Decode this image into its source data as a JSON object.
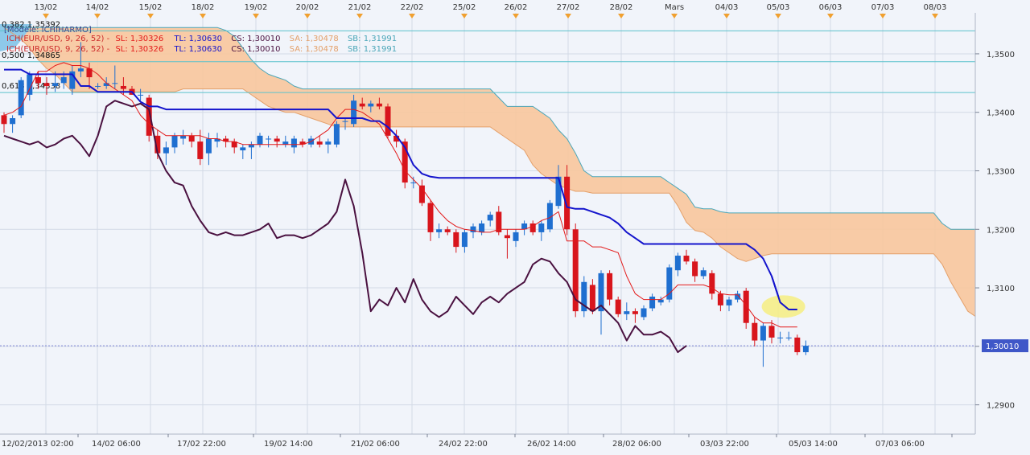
{
  "header": {
    "model_label": "[Modèle: ICHIHARMO]",
    "legend_rows": [
      {
        "indicator": "ICH(EUR/USD, 9, 26, 52)  -",
        "sl": "SL: 1,30326",
        "tl": "TL: 1,30630",
        "cs": "CS: 1,30010",
        "sa": "SA: 1,30478",
        "sb": "SB: 1,31991"
      },
      {
        "indicator": "ICH(EUR/USD, 9, 26, 52)  -",
        "sl": "SL: 1,30326",
        "tl": "TL: 1,30630",
        "cs": "CS: 1,30010",
        "sa": "SA: 1,30478",
        "sb": "SB: 1,31991"
      }
    ]
  },
  "colors": {
    "background": "#f1f4fa",
    "grid": "#d3dae6",
    "bull_candle": "#1f6fd0",
    "bear_candle": "#d8151c",
    "kijun": "#1414cc",
    "tenkan": "#e31a1a",
    "chikou": "#4a1140",
    "cloud_fill": "#f8c79c",
    "senkou_a": "#e4a06a",
    "senkou_b": "#4aa6b8",
    "fib_line": "#5bc2cc",
    "last_price_badge": "#3f57c8",
    "highlight": "#f6ed80",
    "event_marker": "#f0a030"
  },
  "chart_data": {
    "type": "candlestick",
    "instrument": "EUR/USD",
    "y_axis": {
      "range": [
        1.285,
        1.357
      ],
      "ticks": [
        1.29,
        1.3,
        1.31,
        1.32,
        1.33,
        1.34,
        1.35
      ],
      "tick_labels": [
        "1,2900",
        "1,3000",
        "1,3100",
        "1,3200",
        "1,3300",
        "1,3400",
        "1,3500"
      ]
    },
    "top_dates": [
      "13/02",
      "14/02",
      "15/02",
      "18/02",
      "19/02",
      "20/02",
      "21/02",
      "22/02",
      "25/02",
      "26/02",
      "27/02",
      "28/02",
      "Mars",
      "04/03",
      "05/03",
      "06/03",
      "07/03",
      "08/03"
    ],
    "bottom_time_labels": [
      "12/02/2013 02:00",
      "14/02 06:00",
      "17/02 22:00",
      "19/02 14:00",
      "21/02 06:00",
      "24/02 22:00",
      "26/02 14:00",
      "28/02 06:00",
      "03/03 22:00",
      "05/03 14:00",
      "07/03 06:00"
    ],
    "last_price": {
      "label": "1,30010",
      "value": 1.3001
    },
    "fib_levels": [
      {
        "label": "0,382 1,35392",
        "value": 1.35392
      },
      {
        "label": "0,500 1,34865",
        "value": 1.34865
      },
      {
        "label": "0,618 1,34338",
        "value": 1.34338
      }
    ],
    "candles": [
      [
        1.3395,
        1.34,
        1.3365,
        1.338
      ],
      [
        1.338,
        1.3395,
        1.3365,
        1.339
      ],
      [
        1.3395,
        1.346,
        1.339,
        1.3455
      ],
      [
        1.343,
        1.347,
        1.342,
        1.3465
      ],
      [
        1.346,
        1.347,
        1.344,
        1.345
      ],
      [
        1.345,
        1.346,
        1.343,
        1.3445
      ],
      [
        1.3445,
        1.347,
        1.3435,
        1.345
      ],
      [
        1.345,
        1.347,
        1.344,
        1.346
      ],
      [
        1.344,
        1.348,
        1.343,
        1.347
      ],
      [
        1.347,
        1.352,
        1.346,
        1.3475
      ],
      [
        1.3475,
        1.3485,
        1.344,
        1.346
      ],
      [
        1.3445,
        1.345,
        1.344,
        1.3445
      ],
      [
        1.3445,
        1.346,
        1.344,
        1.345
      ],
      [
        1.345,
        1.348,
        1.344,
        1.345
      ],
      [
        1.3445,
        1.346,
        1.343,
        1.344
      ],
      [
        1.344,
        1.3445,
        1.343,
        1.343
      ],
      [
        1.343,
        1.344,
        1.342,
        1.343
      ],
      [
        1.3425,
        1.343,
        1.335,
        1.336
      ],
      [
        1.336,
        1.337,
        1.332,
        1.333
      ],
      [
        1.333,
        1.335,
        1.331,
        1.334
      ],
      [
        1.334,
        1.3365,
        1.333,
        1.336
      ],
      [
        1.3355,
        1.337,
        1.3345,
        1.336
      ],
      [
        1.336,
        1.3365,
        1.334,
        1.335
      ],
      [
        1.335,
        1.337,
        1.331,
        1.332
      ],
      [
        1.333,
        1.3365,
        1.331,
        1.3355
      ],
      [
        1.335,
        1.3365,
        1.334,
        1.3355
      ],
      [
        1.3355,
        1.336,
        1.334,
        1.335
      ],
      [
        1.335,
        1.3355,
        1.333,
        1.334
      ],
      [
        1.3335,
        1.3345,
        1.332,
        1.334
      ],
      [
        1.334,
        1.335,
        1.332,
        1.3345
      ],
      [
        1.3345,
        1.3365,
        1.334,
        1.336
      ],
      [
        1.3355,
        1.336,
        1.334,
        1.3355
      ],
      [
        1.3355,
        1.336,
        1.334,
        1.335
      ],
      [
        1.3345,
        1.336,
        1.334,
        1.335
      ],
      [
        1.334,
        1.336,
        1.333,
        1.3355
      ],
      [
        1.335,
        1.3355,
        1.334,
        1.3345
      ],
      [
        1.3345,
        1.336,
        1.334,
        1.3355
      ],
      [
        1.335,
        1.336,
        1.334,
        1.3345
      ],
      [
        1.3345,
        1.3355,
        1.333,
        1.335
      ],
      [
        1.3345,
        1.3385,
        1.334,
        1.338
      ],
      [
        1.3385,
        1.339,
        1.337,
        1.3385
      ],
      [
        1.338,
        1.343,
        1.3375,
        1.342
      ],
      [
        1.3415,
        1.3425,
        1.3405,
        1.341
      ],
      [
        1.341,
        1.342,
        1.34,
        1.3415
      ],
      [
        1.3415,
        1.3425,
        1.3405,
        1.341
      ],
      [
        1.341,
        1.3415,
        1.3355,
        1.336
      ],
      [
        1.336,
        1.337,
        1.334,
        1.335
      ],
      [
        1.335,
        1.3355,
        1.327,
        1.328
      ],
      [
        1.328,
        1.329,
        1.327,
        1.328
      ],
      [
        1.3275,
        1.3285,
        1.324,
        1.3245
      ],
      [
        1.3245,
        1.325,
        1.318,
        1.3195
      ],
      [
        1.3195,
        1.321,
        1.3185,
        1.32
      ],
      [
        1.32,
        1.3205,
        1.319,
        1.3195
      ],
      [
        1.3195,
        1.32,
        1.316,
        1.317
      ],
      [
        1.317,
        1.32,
        1.316,
        1.3195
      ],
      [
        1.3195,
        1.321,
        1.3185,
        1.3205
      ],
      [
        1.3195,
        1.3215,
        1.319,
        1.321
      ],
      [
        1.3215,
        1.323,
        1.3205,
        1.3225
      ],
      [
        1.323,
        1.324,
        1.319,
        1.3195
      ],
      [
        1.319,
        1.32,
        1.315,
        1.3185
      ],
      [
        1.318,
        1.32,
        1.317,
        1.3195
      ],
      [
        1.32,
        1.3215,
        1.319,
        1.321
      ],
      [
        1.321,
        1.3215,
        1.319,
        1.3195
      ],
      [
        1.3195,
        1.3215,
        1.318,
        1.321
      ],
      [
        1.32,
        1.325,
        1.3195,
        1.3245
      ],
      [
        1.324,
        1.331,
        1.3235,
        1.329
      ],
      [
        1.329,
        1.331,
        1.319,
        1.32
      ],
      [
        1.32,
        1.321,
        1.305,
        1.306
      ],
      [
        1.306,
        1.312,
        1.305,
        1.311
      ],
      [
        1.3105,
        1.3115,
        1.3055,
        1.306
      ],
      [
        1.306,
        1.313,
        1.302,
        1.3125
      ],
      [
        1.3125,
        1.313,
        1.307,
        1.308
      ],
      [
        1.308,
        1.3085,
        1.305,
        1.3055
      ],
      [
        1.3055,
        1.3075,
        1.3045,
        1.306
      ],
      [
        1.306,
        1.3065,
        1.304,
        1.3055
      ],
      [
        1.305,
        1.307,
        1.3045,
        1.3065
      ],
      [
        1.3065,
        1.309,
        1.306,
        1.3085
      ],
      [
        1.3075,
        1.3085,
        1.307,
        1.308
      ],
      [
        1.308,
        1.314,
        1.3075,
        1.3135
      ],
      [
        1.313,
        1.316,
        1.312,
        1.3155
      ],
      [
        1.3155,
        1.3165,
        1.314,
        1.3145
      ],
      [
        1.3145,
        1.315,
        1.311,
        1.312
      ],
      [
        1.312,
        1.3135,
        1.3115,
        1.313
      ],
      [
        1.3125,
        1.313,
        1.308,
        1.309
      ],
      [
        1.309,
        1.3095,
        1.306,
        1.307
      ],
      [
        1.307,
        1.3085,
        1.306,
        1.308
      ],
      [
        1.308,
        1.3095,
        1.3075,
        1.309
      ],
      [
        1.3095,
        1.31,
        1.303,
        1.304
      ],
      [
        1.304,
        1.305,
        1.3,
        1.301
      ],
      [
        1.301,
        1.304,
        1.2965,
        1.3035
      ],
      [
        1.3035,
        1.3045,
        1.3005,
        1.3015
      ],
      [
        1.3015,
        1.3025,
        1.3005,
        1.3015
      ],
      [
        1.3015,
        1.3025,
        1.301,
        1.3015
      ],
      [
        1.3015,
        1.302,
        1.2985,
        1.299
      ],
      [
        1.299,
        1.301,
        1.2985,
        1.3001
      ]
    ],
    "kijun_sen": [
      1.3473,
      1.3473,
      1.3473,
      1.3465,
      1.3465,
      1.3465,
      1.3465,
      1.3465,
      1.3465,
      1.3445,
      1.3445,
      1.3435,
      1.3435,
      1.3435,
      1.3435,
      1.3435,
      1.3418,
      1.341,
      1.341,
      1.3405,
      1.3405,
      1.3405,
      1.3405,
      1.3405,
      1.3405,
      1.3405,
      1.3405,
      1.3405,
      1.3405,
      1.3405,
      1.3405,
      1.3405,
      1.3405,
      1.3405,
      1.3405,
      1.3405,
      1.3405,
      1.3405,
      1.3405,
      1.339,
      1.339,
      1.339,
      1.339,
      1.3385,
      1.3385,
      1.3375,
      1.336,
      1.334,
      1.331,
      1.3295,
      1.329,
      1.3288,
      1.3288,
      1.3288,
      1.3288,
      1.3288,
      1.3288,
      1.3288,
      1.3288,
      1.3288,
      1.3288,
      1.3288,
      1.3288,
      1.3288,
      1.3288,
      1.3288,
      1.3238,
      1.3235,
      1.3235,
      1.323,
      1.3225,
      1.322,
      1.321,
      1.3195,
      1.3185,
      1.3175,
      1.3175,
      1.3175,
      1.3175,
      1.3175,
      1.3175,
      1.3175,
      1.3175,
      1.3175,
      1.3175,
      1.3175,
      1.3175,
      1.3175,
      1.3165,
      1.315,
      1.312,
      1.3075,
      1.3063,
      1.3063
    ],
    "tenkan_sen": [
      1.3395,
      1.34,
      1.341,
      1.344,
      1.347,
      1.347,
      1.348,
      1.3485,
      1.348,
      1.348,
      1.3475,
      1.3465,
      1.345,
      1.344,
      1.343,
      1.342,
      1.3395,
      1.338,
      1.337,
      1.336,
      1.336,
      1.336,
      1.336,
      1.336,
      1.3355,
      1.3355,
      1.335,
      1.335,
      1.3345,
      1.3345,
      1.3345,
      1.3345,
      1.3345,
      1.3345,
      1.3345,
      1.3345,
      1.335,
      1.336,
      1.337,
      1.339,
      1.3405,
      1.3405,
      1.34,
      1.339,
      1.338,
      1.3355,
      1.333,
      1.33,
      1.3285,
      1.327,
      1.325,
      1.323,
      1.3215,
      1.3205,
      1.32,
      1.3198,
      1.3195,
      1.3195,
      1.32,
      1.32,
      1.32,
      1.32,
      1.3205,
      1.3215,
      1.322,
      1.323,
      1.318,
      1.318,
      1.318,
      1.317,
      1.317,
      1.3165,
      1.316,
      1.312,
      1.309,
      1.308,
      1.308,
      1.308,
      1.309,
      1.3105,
      1.3105,
      1.3105,
      1.3105,
      1.31,
      1.309,
      1.3088,
      1.3088,
      1.307,
      1.305,
      1.304,
      1.304,
      1.3033,
      1.3033,
      1.3033
    ],
    "chikou_span": [
      1.336,
      1.3355,
      1.335,
      1.3345,
      1.335,
      1.334,
      1.3345,
      1.3355,
      1.336,
      1.3345,
      1.3325,
      1.336,
      1.341,
      1.342,
      1.3415,
      1.341,
      1.3415,
      1.3405,
      1.333,
      1.33,
      1.328,
      1.3275,
      1.324,
      1.3215,
      1.3195,
      1.319,
      1.3195,
      1.319,
      1.319,
      1.3195,
      1.32,
      1.321,
      1.3185,
      1.319,
      1.319,
      1.3185,
      1.319,
      1.32,
      1.321,
      1.323,
      1.3285,
      1.324,
      1.316,
      1.306,
      1.308,
      1.307,
      1.31,
      1.3075,
      1.3115,
      1.308,
      1.306,
      1.305,
      1.306,
      1.3085,
      1.307,
      1.3055,
      1.3075,
      1.3085,
      1.3075,
      1.309,
      1.31,
      1.311,
      1.314,
      1.315,
      1.3145,
      1.3125,
      1.311,
      1.308,
      1.307,
      1.306,
      1.307,
      1.3055,
      1.304,
      1.301,
      1.3035,
      1.302,
      1.302,
      1.3025,
      1.3015,
      1.299,
      1.3001
    ],
    "senkou_a": [
      1.3545,
      1.3535,
      1.3525,
      1.351,
      1.349,
      1.3475,
      1.3465,
      1.345,
      1.3435,
      1.3435,
      1.3435,
      1.3435,
      1.3435,
      1.3435,
      1.3435,
      1.3435,
      1.3435,
      1.3435,
      1.3435,
      1.3435,
      1.3435,
      1.344,
      1.344,
      1.344,
      1.344,
      1.344,
      1.344,
      1.344,
      1.344,
      1.343,
      1.342,
      1.341,
      1.3405,
      1.34,
      1.34,
      1.3395,
      1.339,
      1.3385,
      1.338,
      1.3375,
      1.3375,
      1.3375,
      1.3375,
      1.3375,
      1.3375,
      1.3375,
      1.3375,
      1.3375,
      1.3375,
      1.3375,
      1.3375,
      1.3375,
      1.3375,
      1.3375,
      1.3375,
      1.3375,
      1.3375,
      1.3375,
      1.3365,
      1.3355,
      1.3345,
      1.3335,
      1.331,
      1.3295,
      1.3285,
      1.3275,
      1.327,
      1.3265,
      1.3265,
      1.3262,
      1.3262,
      1.3262,
      1.3262,
      1.3262,
      1.3262,
      1.3262,
      1.3262,
      1.3262,
      1.3262,
      1.324,
      1.3212,
      1.3198,
      1.3195,
      1.3185,
      1.317,
      1.316,
      1.315,
      1.3145,
      1.315,
      1.3155,
      1.3158,
      1.3158,
      1.3158,
      1.3158,
      1.3158,
      1.3158,
      1.3158,
      1.3158,
      1.3158,
      1.3158,
      1.3158,
      1.3158,
      1.3158,
      1.3158,
      1.3158,
      1.3158,
      1.3158,
      1.3158,
      1.3158,
      1.3158,
      1.314,
      1.311,
      1.3085,
      1.306,
      1.305,
      1.3048
    ],
    "senkou_b": [
      1.3545,
      1.3545,
      1.3545,
      1.3545,
      1.3545,
      1.3545,
      1.3545,
      1.3545,
      1.3545,
      1.3545,
      1.3545,
      1.3545,
      1.3545,
      1.3545,
      1.3545,
      1.3545,
      1.3545,
      1.3545,
      1.3545,
      1.3545,
      1.3545,
      1.3545,
      1.3545,
      1.3545,
      1.3545,
      1.3545,
      1.354,
      1.353,
      1.351,
      1.349,
      1.3475,
      1.3465,
      1.346,
      1.3455,
      1.3445,
      1.344,
      1.344,
      1.344,
      1.344,
      1.344,
      1.344,
      1.344,
      1.344,
      1.344,
      1.344,
      1.344,
      1.344,
      1.344,
      1.344,
      1.344,
      1.344,
      1.344,
      1.344,
      1.344,
      1.344,
      1.344,
      1.344,
      1.344,
      1.3425,
      1.341,
      1.341,
      1.341,
      1.341,
      1.34,
      1.339,
      1.337,
      1.3355,
      1.333,
      1.33,
      1.329,
      1.329,
      1.329,
      1.329,
      1.329,
      1.329,
      1.329,
      1.329,
      1.329,
      1.328,
      1.327,
      1.326,
      1.3238,
      1.3235,
      1.3235,
      1.323,
      1.3228,
      1.3228,
      1.3228,
      1.3228,
      1.3228,
      1.3228,
      1.3228,
      1.3228,
      1.3228,
      1.3228,
      1.3228,
      1.3228,
      1.3228,
      1.3228,
      1.3228,
      1.3228,
      1.3228,
      1.3228,
      1.3228,
      1.3228,
      1.3228,
      1.3228,
      1.3228,
      1.3228,
      1.3228,
      1.321,
      1.32,
      1.32,
      1.32,
      1.32,
      1.32
    ]
  }
}
